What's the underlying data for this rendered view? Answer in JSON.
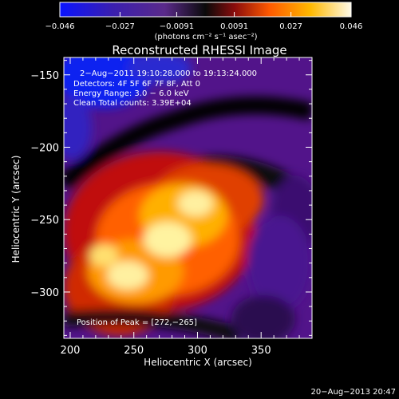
{
  "colorbar": {
    "ticks": [
      "−0.046",
      "−0.027",
      "−0.0091",
      "0.0091",
      "0.027",
      "0.046"
    ],
    "values": [
      -0.046,
      -0.027,
      -0.0091,
      0.0091,
      0.027,
      0.046
    ],
    "unit_text": "(photons cm⁻² s⁻¹ asec⁻²)",
    "colors": [
      "#0a14ff",
      "#3a1fb0",
      "#5a2a8a",
      "#0a0a0a",
      "#8a0c0c",
      "#ff5a00",
      "#ffb800",
      "#fffbe8"
    ]
  },
  "title": "Reconstructed RHESSI Image",
  "annotations": {
    "line1": "2−Aug−2011 19:10:28.000 to 19:13:24.000",
    "line2": "Detectors: 4F 5F 6F 7F 8F, Att 0",
    "line3": "Energy Range: 3.0 − 6.0 keV",
    "line4": "Clean     Total counts: 3.39E+04",
    "peak": "Position of Peak = [272,−265]"
  },
  "footer": "20−Aug−2013 20:47",
  "chart_data": {
    "type": "heatmap",
    "title": "Reconstructed RHESSI Image",
    "xlabel": "Heliocentric X (arcsec)",
    "ylabel": "Heliocentric Y (arcsec)",
    "xlim": [
      195,
      390
    ],
    "ylim": [
      -332,
      -138
    ],
    "x_ticks": [
      200,
      250,
      300,
      350
    ],
    "y_ticks": [
      -150,
      -200,
      -250,
      -300
    ],
    "x_tick_labels": [
      "200",
      "250",
      "300",
      "350"
    ],
    "y_tick_labels": [
      "−150",
      "−200",
      "−250",
      "−300"
    ],
    "colorbar_range": [
      -0.046,
      0.046
    ],
    "peak_position": [
      272,
      -265
    ],
    "grid": false
  }
}
